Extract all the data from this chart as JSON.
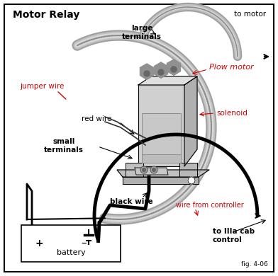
{
  "title": "Motor Relay",
  "fig_label": "fig. 4-06",
  "bg": "#ffffff",
  "black": "#000000",
  "red": "#cc0000",
  "gray_dark": "#888888",
  "gray_mid": "#aaaaaa",
  "gray_light": "#cccccc",
  "gray_wire": "#b0b0b0",
  "labels": {
    "jumper_wire": "jumper wire",
    "red_wire": "red wire",
    "large_terminals": "large\nterminals",
    "small_terminals": "small\nterminals",
    "black_wire": "black wire",
    "battery": "battery",
    "to_motor": "to motor",
    "plow_motor": "Plow motor",
    "solenoid": "solenoid",
    "wire_from_controller": "wire from controller",
    "to_cab": "to IIIa cab\ncontrol"
  },
  "figsize": [
    3.92,
    3.9
  ],
  "dpi": 100
}
